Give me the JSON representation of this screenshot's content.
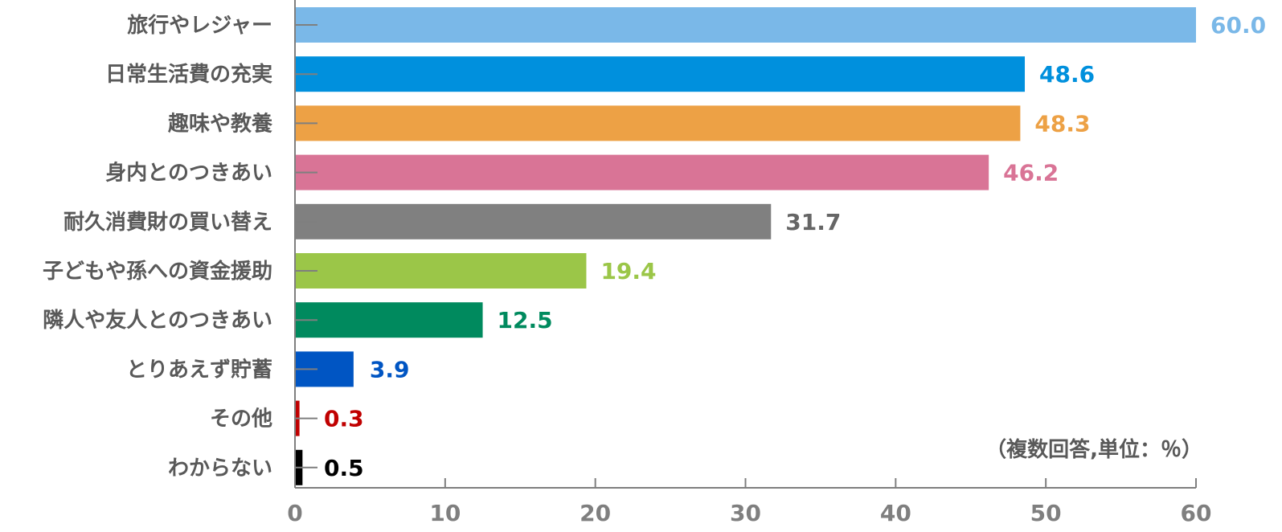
{
  "chart_data": {
    "type": "bar",
    "orientation": "horizontal",
    "title": "",
    "xlabel": "",
    "ylabel": "",
    "xlim": [
      0,
      60
    ],
    "xticks": [
      0,
      10,
      20,
      30,
      40,
      50,
      60
    ],
    "grid": false,
    "note": "（複数回答,単位：％）",
    "categories": [
      "旅行やレジャー",
      "日常生活費の充実",
      "趣味や教養",
      "身内とのつきあい",
      "耐久消費財の買い替え",
      "子どもや孫への資金援助",
      "隣人や友人とのつきあい",
      "とりあえず貯蓄",
      "その他",
      "わからない"
    ],
    "values": [
      60.0,
      48.6,
      48.3,
      46.2,
      31.7,
      19.4,
      12.5,
      3.9,
      0.3,
      0.5
    ],
    "value_labels": [
      "60.0",
      "48.6",
      "48.3",
      "46.2",
      "31.7",
      "19.4",
      "12.5",
      "3.9",
      "0.3",
      "0.5"
    ],
    "colors": [
      "#7ab8e8",
      "#0090dd",
      "#eda145",
      "#d97496",
      "#808080",
      "#9bc648",
      "#008a5e",
      "#0055c3",
      "#c00000",
      "#000000"
    ],
    "label_colors": [
      "#7ab8e8",
      "#0090dd",
      "#eda145",
      "#d97496",
      "#666666",
      "#9bc648",
      "#008a5e",
      "#0055c3",
      "#c00000",
      "#000000"
    ]
  }
}
